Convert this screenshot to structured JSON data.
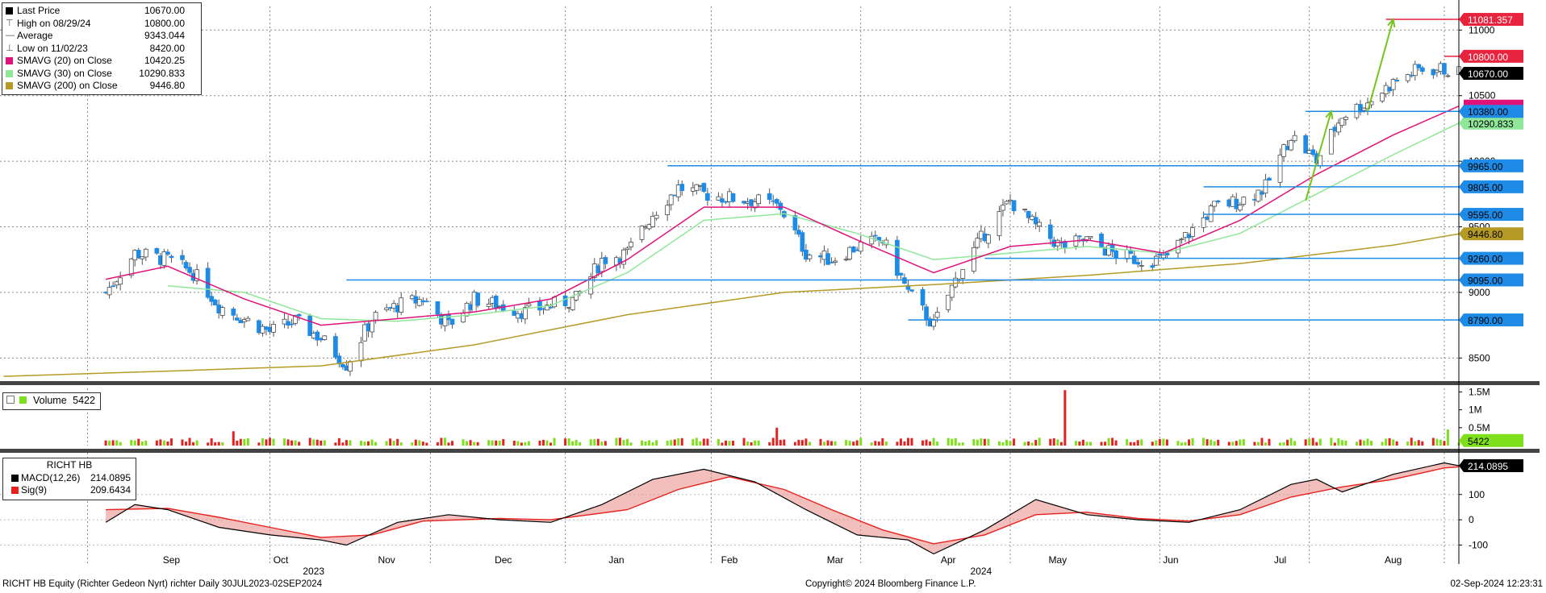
{
  "legend": {
    "rows": [
      {
        "icon": "square-icon",
        "label": "Last Price",
        "value": "10670.00",
        "color": "#000000"
      },
      {
        "icon": "high-marker-icon",
        "label": "High on 08/29/24",
        "value": "10800.00",
        "color": "#555555"
      },
      {
        "icon": "average-marker-icon",
        "label": "Average",
        "value": "9343.044",
        "color": "#555555"
      },
      {
        "icon": "low-marker-icon",
        "label": "Low on 11/02/23",
        "value": "8420.00",
        "color": "#555555"
      },
      {
        "icon": "square-icon",
        "label": "SMAVG (20)  on Close",
        "value": "10420.25",
        "color": "#e0127a"
      },
      {
        "icon": "square-icon",
        "label": "SMAVG (30)  on Close",
        "value": "10290.833",
        "color": "#8fe89a"
      },
      {
        "icon": "square-icon",
        "label": "SMAVG (200)  on Close",
        "value": "9446.80",
        "color": "#b59a26"
      }
    ]
  },
  "volume_legend": {
    "label": "Volume",
    "value": "5422"
  },
  "macd_legend": {
    "title": "RICHT HB",
    "rows": [
      {
        "label": "MACD(12,26)",
        "value": "214.0895",
        "color": "#000000"
      },
      {
        "label": "Sig(9)",
        "value": "209.6434",
        "color": "#e8211d"
      }
    ]
  },
  "chart_data": [
    {
      "type": "candlestick",
      "panel": "price",
      "y_ticks": [
        "8500",
        "9000",
        "9500",
        "10000",
        "10500",
        "11000"
      ],
      "ylim": [
        8330,
        11180
      ],
      "x_tick_labels": [
        "Sep",
        "Oct",
        "Nov",
        "Dec",
        "Jan",
        "Feb",
        "Mar",
        "Apr",
        "May",
        "Jun",
        "Jul",
        "Aug"
      ],
      "year_labels": [
        "2023",
        "2024"
      ],
      "date_range": [
        "2023-07-30",
        "2024-09-02"
      ],
      "close_path": [
        [
          "2023-08-28",
          9000
        ],
        [
          "2023-09-05",
          9300
        ],
        [
          "2023-09-14",
          9250
        ],
        [
          "2023-09-21",
          9150
        ],
        [
          "2023-09-28",
          8900
        ],
        [
          "2023-10-05",
          8800
        ],
        [
          "2023-10-12",
          8700
        ],
        [
          "2023-10-19",
          8780
        ],
        [
          "2023-10-26",
          8650
        ],
        [
          "2023-11-02",
          8450
        ],
        [
          "2023-11-09",
          8800
        ],
        [
          "2023-11-16",
          8900
        ],
        [
          "2023-11-23",
          8950
        ],
        [
          "2023-11-30",
          8750
        ],
        [
          "2023-12-07",
          8950
        ],
        [
          "2023-12-14",
          8900
        ],
        [
          "2023-12-21",
          8850
        ],
        [
          "2024-01-04",
          8950
        ],
        [
          "2024-01-11",
          9250
        ],
        [
          "2024-01-18",
          9300
        ],
        [
          "2024-01-25",
          9600
        ],
        [
          "2024-02-01",
          9800
        ],
        [
          "2024-02-08",
          9750
        ],
        [
          "2024-02-15",
          9720
        ],
        [
          "2024-02-22",
          9700
        ],
        [
          "2024-02-29",
          9650
        ],
        [
          "2024-03-07",
          9300
        ],
        [
          "2024-03-14",
          9250
        ],
        [
          "2024-03-21",
          9350
        ],
        [
          "2024-03-28",
          9400
        ],
        [
          "2024-04-04",
          9000
        ],
        [
          "2024-04-11",
          8750
        ],
        [
          "2024-04-18",
          9150
        ],
        [
          "2024-04-25",
          9450
        ],
        [
          "2024-05-02",
          9700
        ],
        [
          "2024-05-09",
          9500
        ],
        [
          "2024-05-16",
          9350
        ],
        [
          "2024-05-23",
          9400
        ],
        [
          "2024-05-30",
          9300
        ],
        [
          "2024-06-06",
          9250
        ],
        [
          "2024-06-13",
          9250
        ],
        [
          "2024-06-20",
          9450
        ],
        [
          "2024-06-27",
          9650
        ],
        [
          "2024-07-04",
          9700
        ],
        [
          "2024-07-11",
          9800
        ],
        [
          "2024-07-18",
          10200
        ],
        [
          "2024-07-25",
          10000
        ],
        [
          "2024-08-01",
          10350
        ],
        [
          "2024-08-08",
          10450
        ],
        [
          "2024-08-15",
          10600
        ],
        [
          "2024-08-22",
          10700
        ],
        [
          "2024-08-29",
          10700
        ],
        [
          "2024-09-02",
          10670
        ]
      ],
      "sma20_path": [
        [
          "2023-08-28",
          9100
        ],
        [
          "2023-09-14",
          9200
        ],
        [
          "2023-10-05",
          8950
        ],
        [
          "2023-10-26",
          8750
        ],
        [
          "2023-11-16",
          8800
        ],
        [
          "2023-12-07",
          8850
        ],
        [
          "2023-12-28",
          8950
        ],
        [
          "2024-01-18",
          9250
        ],
        [
          "2024-02-08",
          9650
        ],
        [
          "2024-03-01",
          9650
        ],
        [
          "2024-03-21",
          9400
        ],
        [
          "2024-04-11",
          9150
        ],
        [
          "2024-05-02",
          9350
        ],
        [
          "2024-05-23",
          9400
        ],
        [
          "2024-06-13",
          9300
        ],
        [
          "2024-07-04",
          9550
        ],
        [
          "2024-07-25",
          9900
        ],
        [
          "2024-08-15",
          10200
        ],
        [
          "2024-09-02",
          10420.25
        ]
      ],
      "sma30_path": [
        [
          "2023-09-14",
          9050
        ],
        [
          "2023-10-05",
          9000
        ],
        [
          "2023-10-26",
          8800
        ],
        [
          "2023-11-16",
          8780
        ],
        [
          "2023-12-07",
          8830
        ],
        [
          "2023-12-28",
          8900
        ],
        [
          "2024-01-18",
          9150
        ],
        [
          "2024-02-08",
          9550
        ],
        [
          "2024-03-01",
          9600
        ],
        [
          "2024-03-21",
          9450
        ],
        [
          "2024-04-11",
          9250
        ],
        [
          "2024-05-02",
          9300
        ],
        [
          "2024-05-23",
          9350
        ],
        [
          "2024-06-13",
          9300
        ],
        [
          "2024-07-04",
          9450
        ],
        [
          "2024-07-25",
          9750
        ],
        [
          "2024-08-15",
          10050
        ],
        [
          "2024-09-02",
          10290.833
        ]
      ],
      "sma200_path": [
        [
          "2023-07-31",
          8360
        ],
        [
          "2023-09-14",
          8400
        ],
        [
          "2023-10-26",
          8440
        ],
        [
          "2023-12-07",
          8600
        ],
        [
          "2024-01-18",
          8830
        ],
        [
          "2024-03-01",
          9000
        ],
        [
          "2024-04-11",
          9060
        ],
        [
          "2024-05-23",
          9130
        ],
        [
          "2024-07-04",
          9220
        ],
        [
          "2024-08-15",
          9360
        ],
        [
          "2024-09-02",
          9446.8
        ]
      ],
      "support_resistance_lines": [
        {
          "value": 10800.0,
          "label": "10800.00",
          "color": "#e8233e",
          "from": "2024-08-29"
        },
        {
          "value": 10380.0,
          "label": "10380.00",
          "color": "#1e8be6",
          "from": "2024-07-22"
        },
        {
          "value": 9965.0,
          "label": "9965.00",
          "color": "#1e8be6",
          "from": "2024-01-29"
        },
        {
          "value": 9805.0,
          "label": "9805.00",
          "color": "#1e8be6",
          "from": "2024-06-24"
        },
        {
          "value": 9595.0,
          "label": "9595.00",
          "color": "#1e8be6",
          "from": "2024-06-24"
        },
        {
          "value": 9260.0,
          "label": "9260.00",
          "color": "#1e8be6",
          "from": "2024-04-25"
        },
        {
          "value": 9095.0,
          "label": "9095.00",
          "color": "#1e8be6",
          "from": "2023-11-02"
        },
        {
          "value": 8790.0,
          "label": "8790.00",
          "color": "#1e8be6",
          "from": "2024-04-04"
        }
      ],
      "target_line": {
        "value": 11081.357,
        "label": "11081.357",
        "color": "#e8233e",
        "from": "2024-08-13"
      },
      "arrows": [
        {
          "from": [
            "2024-07-22",
            9700
          ],
          "to": [
            "2024-07-29",
            10380
          ],
          "color": "#76c41d"
        },
        {
          "from": [
            "2024-08-08",
            10380
          ],
          "to": [
            "2024-08-15",
            11081.357
          ],
          "color": "#76c41d"
        }
      ],
      "right_labels": [
        {
          "value": 11081.357,
          "text": "11081.357",
          "color": "#e8233e"
        },
        {
          "value": 10800,
          "text": "10800.00",
          "color": "#e8233e"
        },
        {
          "value": 10670,
          "text": "10670.00",
          "color": "#000000"
        },
        {
          "value": 10420.25,
          "text": "10420.25",
          "color": "#e0127a"
        },
        {
          "value": 10380,
          "text": "10380.00",
          "color": "#1e8be6"
        },
        {
          "value": 10290.833,
          "text": "10290.833",
          "color": "#8fe89a"
        },
        {
          "value": 9965,
          "text": "9965.00",
          "color": "#1e8be6"
        },
        {
          "value": 9805,
          "text": "9805.00",
          "color": "#1e8be6"
        },
        {
          "value": 9595,
          "text": "9595.00",
          "color": "#1e8be6"
        },
        {
          "value": 9446.8,
          "text": "9446.80",
          "color": "#b59a26"
        },
        {
          "value": 9260,
          "text": "9260.00",
          "color": "#1e8be6"
        },
        {
          "value": 9095,
          "text": "9095.00",
          "color": "#1e8be6"
        },
        {
          "value": 8790,
          "text": "8790.00",
          "color": "#1e8be6"
        }
      ]
    },
    {
      "type": "bar",
      "panel": "volume",
      "y_ticks": [
        "0.5M",
        "1M",
        "1.5M"
      ],
      "ylim": [
        0,
        1600000
      ],
      "last_value": 5422,
      "last_label": "5422",
      "spikes": [
        {
          "date": "2023-10-02",
          "value": 400000
        },
        {
          "date": "2024-02-28",
          "value": 500000
        },
        {
          "date": "2024-05-17",
          "value": 1550000
        },
        {
          "date": "2024-08-30",
          "value": 450000
        }
      ],
      "typical_range": [
        80000,
        220000
      ]
    },
    {
      "type": "line",
      "panel": "macd",
      "y_ticks": [
        "-100",
        "0",
        "100"
      ],
      "ylim": [
        -175,
        265
      ],
      "series": [
        {
          "name": "MACD(12,26)",
          "color": "#000000",
          "points": [
            [
              "2023-08-28",
              -10
            ],
            [
              "2023-09-05",
              60
            ],
            [
              "2023-09-14",
              40
            ],
            [
              "2023-09-28",
              -30
            ],
            [
              "2023-10-12",
              -60
            ],
            [
              "2023-10-26",
              -80
            ],
            [
              "2023-11-02",
              -100
            ],
            [
              "2023-11-16",
              -10
            ],
            [
              "2023-11-30",
              20
            ],
            [
              "2023-12-14",
              0
            ],
            [
              "2023-12-28",
              -10
            ],
            [
              "2024-01-11",
              60
            ],
            [
              "2024-01-25",
              160
            ],
            [
              "2024-02-08",
              200
            ],
            [
              "2024-02-22",
              150
            ],
            [
              "2024-03-07",
              40
            ],
            [
              "2024-03-21",
              -60
            ],
            [
              "2024-04-04",
              -80
            ],
            [
              "2024-04-11",
              -135
            ],
            [
              "2024-04-25",
              -40
            ],
            [
              "2024-05-09",
              80
            ],
            [
              "2024-05-23",
              20
            ],
            [
              "2024-06-06",
              0
            ],
            [
              "2024-06-20",
              -10
            ],
            [
              "2024-07-04",
              40
            ],
            [
              "2024-07-18",
              140
            ],
            [
              "2024-07-25",
              160
            ],
            [
              "2024-08-01",
              110
            ],
            [
              "2024-08-15",
              180
            ],
            [
              "2024-08-29",
              225
            ],
            [
              "2024-09-02",
              214.0895
            ]
          ]
        },
        {
          "name": "Sig(9)",
          "color": "#e8211d",
          "points": [
            [
              "2023-08-28",
              40
            ],
            [
              "2023-09-14",
              45
            ],
            [
              "2023-09-28",
              10
            ],
            [
              "2023-10-12",
              -30
            ],
            [
              "2023-10-26",
              -70
            ],
            [
              "2023-11-09",
              -60
            ],
            [
              "2023-11-23",
              -5
            ],
            [
              "2023-12-14",
              5
            ],
            [
              "2023-12-28",
              0
            ],
            [
              "2024-01-18",
              40
            ],
            [
              "2024-02-01",
              120
            ],
            [
              "2024-02-15",
              170
            ],
            [
              "2024-03-01",
              120
            ],
            [
              "2024-03-14",
              40
            ],
            [
              "2024-03-28",
              -40
            ],
            [
              "2024-04-11",
              -95
            ],
            [
              "2024-04-25",
              -60
            ],
            [
              "2024-05-09",
              20
            ],
            [
              "2024-05-23",
              30
            ],
            [
              "2024-06-06",
              5
            ],
            [
              "2024-06-20",
              -5
            ],
            [
              "2024-07-04",
              20
            ],
            [
              "2024-07-18",
              90
            ],
            [
              "2024-08-01",
              130
            ],
            [
              "2024-08-15",
              160
            ],
            [
              "2024-08-29",
              205
            ],
            [
              "2024-09-02",
              209.6434
            ]
          ]
        }
      ],
      "right_label": {
        "value": 214.0895,
        "text": "214.0895"
      }
    }
  ],
  "footer": {
    "left": "RICHT HB Equity (Richter Gedeon Nyrt) richter  Daily 30JUL2023-02SEP2024",
    "center": "Copyright© 2024 Bloomberg Finance L.P.",
    "right": "02-Sep-2024 12:23:31"
  }
}
